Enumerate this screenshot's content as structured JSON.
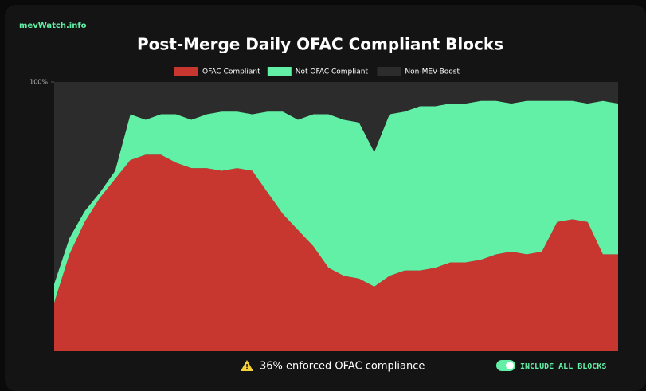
{
  "site": "mevWatch.info",
  "chart_data": {
    "type": "stacked_area",
    "title": "Post-Merge Daily OFAC Compliant Blocks",
    "ylim": [
      0,
      100
    ],
    "yticks": [
      {
        "value": 100,
        "label": "100%"
      }
    ],
    "series": [
      {
        "name": "OFAC Compliant",
        "color": "#c8372f",
        "values": [
          18,
          36,
          48,
          57,
          64,
          71,
          73,
          73,
          70,
          68,
          68,
          67,
          68,
          67,
          59,
          51,
          45,
          39,
          31,
          28,
          27,
          24,
          28,
          30,
          30,
          31,
          33,
          33,
          34,
          36,
          37,
          36,
          37,
          48,
          49,
          48,
          36,
          36
        ]
      },
      {
        "name": "Not OFAC Compliant",
        "color": "#62f0a6",
        "values": [
          7,
          6,
          4,
          2,
          3,
          17,
          13,
          15,
          18,
          18,
          20,
          22,
          21,
          21,
          30,
          38,
          41,
          49,
          57,
          58,
          58,
          50,
          60,
          59,
          61,
          60,
          59,
          59,
          59,
          57,
          55,
          57,
          56,
          45,
          44,
          44,
          57,
          56
        ]
      },
      {
        "name": "Non-MEV-Boost",
        "color": "#2c2c2c",
        "values": [
          75,
          58,
          48,
          41,
          33,
          12,
          14,
          12,
          12,
          14,
          12,
          11,
          11,
          12,
          11,
          11,
          14,
          12,
          12,
          14,
          15,
          26,
          12,
          11,
          9,
          9,
          8,
          8,
          7,
          7,
          8,
          7,
          7,
          7,
          7,
          8,
          7,
          8
        ]
      }
    ]
  },
  "footer": {
    "status": "36% enforced OFAC compliance",
    "toggle_label": "INCLUDE ALL BLOCKS"
  }
}
